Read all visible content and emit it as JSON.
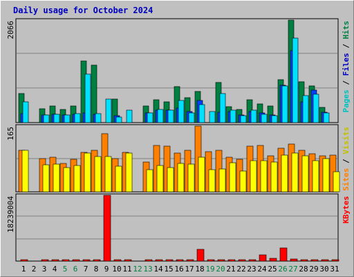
{
  "chart_data": {
    "title": "Daily usage for October 2024",
    "type": "bar",
    "days": [
      "1",
      "2",
      "3",
      "4",
      "5",
      "6",
      "7",
      "8",
      "9",
      "10",
      "11",
      "12",
      "13",
      "14",
      "15",
      "16",
      "17",
      "18",
      "19",
      "20",
      "21",
      "22",
      "23",
      "24",
      "25",
      "26",
      "27",
      "28",
      "29",
      "30",
      "31"
    ],
    "weekend_days": [
      "5",
      "6",
      "12",
      "13",
      "19",
      "20",
      "26",
      "27"
    ],
    "colors": {
      "hits": "#008040",
      "files": "#0040ff",
      "pages": "#00e0ff",
      "visits": "#ff8000",
      "sites": "#ffff00",
      "kbytes": "#ff0000",
      "weekday_label": "#000000",
      "weekend_label": "#008040",
      "plot_bg": "#c0c0c0",
      "gridline": "#808080"
    },
    "panels": [
      {
        "id": "hits-files-pages",
        "max_label": "2066",
        "ymax": 2066,
        "legend": [
          {
            "text": "Pages",
            "color": "#00c0c0"
          },
          {
            "text": " / ",
            "color": "#000000"
          },
          {
            "text": "Files",
            "color": "#0000c0"
          },
          {
            "text": " / ",
            "color": "#000000"
          },
          {
            "text": "Hits",
            "color": "#008040"
          }
        ],
        "series": [
          {
            "name": "Hits",
            "color": "#008040",
            "values": [
              580,
              0,
              280,
              340,
              260,
              330,
              1240,
              1160,
              0,
              480,
              0,
              0,
              330,
              460,
              420,
              720,
              500,
              630,
              0,
              810,
              320,
              270,
              460,
              370,
              330,
              870,
              2066,
              830,
              740,
              310,
              0
            ]
          },
          {
            "name": "Files",
            "color": "#0040ff",
            "values": [
              180,
              0,
              160,
              170,
              150,
              170,
              200,
              170,
              0,
              140,
              0,
              0,
              200,
              250,
              250,
              300,
              230,
              440,
              0,
              210,
              220,
              150,
              230,
              200,
              160,
              760,
              1450,
              420,
              660,
              210,
              0
            ]
          },
          {
            "name": "Pages",
            "color": "#00e0ff",
            "values": [
              420,
              0,
              160,
              170,
              160,
              180,
              980,
              180,
              480,
              110,
              250,
              0,
              200,
              270,
              250,
              440,
              200,
              360,
              220,
              590,
              250,
              140,
              250,
              170,
              140,
              740,
              1700,
              540,
              570,
              200,
              0
            ]
          }
        ]
      },
      {
        "id": "visits-sites",
        "max_label": "165",
        "ymax": 165,
        "legend": [
          {
            "text": "Sites",
            "color": "#ff8000"
          },
          {
            "text": " / ",
            "color": "#000000"
          },
          {
            "text": "Visits",
            "color": "#c0c000"
          }
        ],
        "series": [
          {
            "name": "Visits",
            "color": "#ff8000",
            "values": [
              104,
              0,
              83,
              87,
              71,
              82,
              99,
              104,
              146,
              83,
              99,
              0,
              74,
              116,
              114,
              98,
              104,
              165,
              100,
              104,
              87,
              82,
              114,
              116,
              90,
              110,
              119,
              104,
              95,
              90,
              92
            ]
          },
          {
            "name": "Sites",
            "color": "#ffff00",
            "values": [
              104,
              0,
              68,
              70,
              61,
              66,
              98,
              88,
              89,
              64,
              98,
              0,
              56,
              66,
              60,
              71,
              70,
              86,
              56,
              57,
              73,
              52,
              79,
              79,
              74,
              92,
              98,
              90,
              78,
              84,
              51
            ]
          }
        ]
      },
      {
        "id": "kbytes",
        "max_label": "18239004",
        "ymax": 18239004,
        "legend": [
          {
            "text": "KBytes",
            "color": "#ff0000"
          }
        ],
        "series": [
          {
            "name": "KBytes",
            "color": "#ff0000",
            "values": [
              450000,
              0,
              300000,
              300000,
              300000,
              300000,
              300000,
              350000,
              18239004,
              300000,
              300000,
              0,
              300000,
              300000,
              300000,
              300000,
              300000,
              3200000,
              300000,
              300000,
              300000,
              300000,
              300000,
              1700000,
              700000,
              3700000,
              600000,
              400000,
              300000,
              300000,
              300000
            ]
          }
        ]
      }
    ]
  }
}
